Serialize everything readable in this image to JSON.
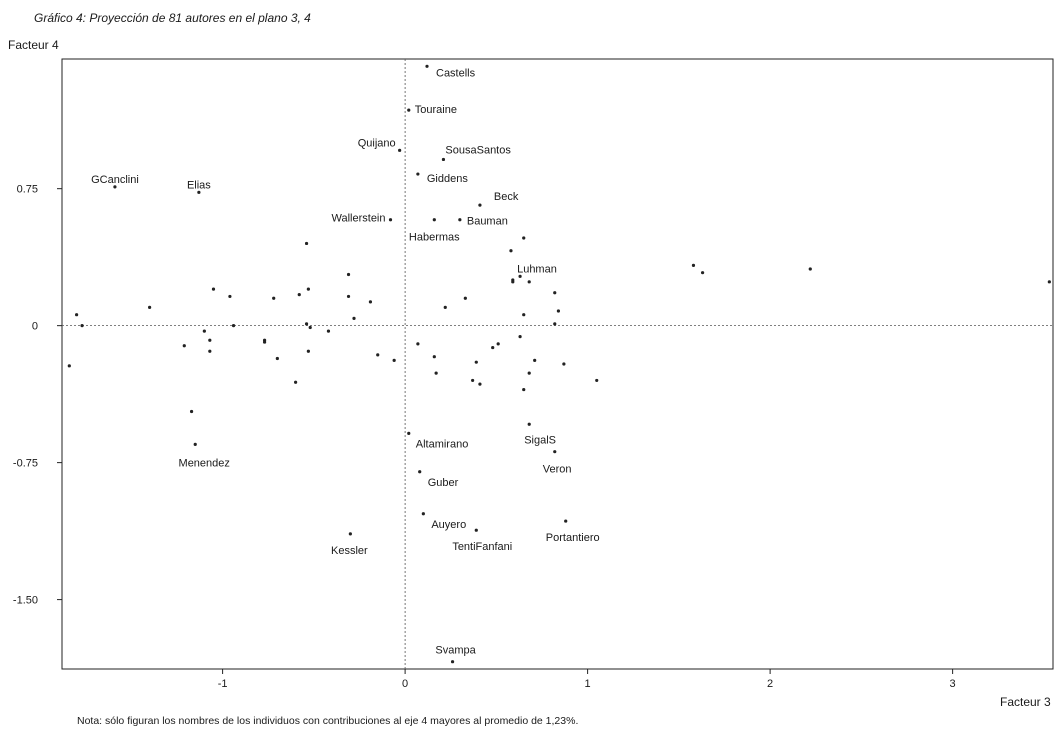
{
  "chart_data": {
    "type": "scatter",
    "title": "Gráfico 4: Proyección de 81 autores en el plano 3, 4",
    "xlabel": "Facteur 3",
    "ylabel": "Facteur 4",
    "note": "Nota: sólo figuran los nombres de los individuos con contribuciones al eje 4 mayores al promedio de 1,23%.",
    "xlim": [
      -1.88,
      3.55
    ],
    "ylim": [
      -1.88,
      1.46
    ],
    "x_ticks": [
      -1,
      0,
      1,
      2,
      3
    ],
    "x_tick_labels": [
      "-1",
      "0",
      "1",
      "2",
      "3"
    ],
    "y_ticks": [
      0.75,
      0,
      -0.75,
      -1.5
    ],
    "y_tick_labels": [
      "0.75",
      "0",
      "-0.75",
      "-1.50"
    ],
    "reference_lines": {
      "x": 0,
      "y": 0,
      "style": "dotted"
    },
    "grid": false,
    "points": [
      {
        "label": "Castells",
        "x": 0.12,
        "y": 1.42
      },
      {
        "label": "Touraine",
        "x": 0.02,
        "y": 1.18
      },
      {
        "label": "Quijano",
        "x": -0.03,
        "y": 0.96
      },
      {
        "label": "SousaSantos",
        "x": 0.21,
        "y": 0.91
      },
      {
        "label": "Giddens",
        "x": 0.07,
        "y": 0.83
      },
      {
        "label": "GCanclini",
        "x": -1.59,
        "y": 0.76
      },
      {
        "label": "Elias",
        "x": -1.13,
        "y": 0.73
      },
      {
        "label": "Beck",
        "x": 0.41,
        "y": 0.66
      },
      {
        "label": "Wallerstein",
        "x": -0.08,
        "y": 0.58
      },
      {
        "label": "Bauman",
        "x": 0.3,
        "y": 0.58
      },
      {
        "label": "Habermas",
        "x": 0.16,
        "y": 0.58
      },
      {
        "label": "Luhman",
        "x": 0.63,
        "y": 0.27
      },
      {
        "label": "Altamirano",
        "x": 0.02,
        "y": -0.59
      },
      {
        "label": "SigalS",
        "x": 0.68,
        "y": -0.54
      },
      {
        "label": "Veron",
        "x": 0.82,
        "y": -0.69
      },
      {
        "label": "Menendez",
        "x": -1.15,
        "y": -0.65
      },
      {
        "label": "Guber",
        "x": 0.08,
        "y": -0.8
      },
      {
        "label": "Auyero",
        "x": 0.1,
        "y": -1.03
      },
      {
        "label": "TentiFanfani",
        "x": 0.39,
        "y": -1.12
      },
      {
        "label": "Portantiero",
        "x": 0.88,
        "y": -1.07
      },
      {
        "label": "Kessler",
        "x": -0.3,
        "y": -1.14
      },
      {
        "label": "Svampa",
        "x": 0.26,
        "y": -1.84
      },
      {
        "label": "",
        "x": -1.84,
        "y": -0.22
      },
      {
        "label": "",
        "x": -1.8,
        "y": 0.06
      },
      {
        "label": "",
        "x": -1.77,
        "y": 0.0
      },
      {
        "label": "",
        "x": -1.4,
        "y": 0.1
      },
      {
        "label": "",
        "x": -1.21,
        "y": -0.11
      },
      {
        "label": "",
        "x": -1.17,
        "y": -0.47
      },
      {
        "label": "",
        "x": -1.1,
        "y": -0.03
      },
      {
        "label": "",
        "x": -1.07,
        "y": -0.08
      },
      {
        "label": "",
        "x": -1.07,
        "y": -0.14
      },
      {
        "label": "",
        "x": -1.05,
        "y": 0.2
      },
      {
        "label": "",
        "x": -0.96,
        "y": 0.16
      },
      {
        "label": "",
        "x": -0.94,
        "y": 0.0
      },
      {
        "label": "",
        "x": -0.77,
        "y": -0.08
      },
      {
        "label": "",
        "x": -0.77,
        "y": -0.09
      },
      {
        "label": "",
        "x": -0.72,
        "y": 0.15
      },
      {
        "label": "",
        "x": -0.7,
        "y": -0.18
      },
      {
        "label": "",
        "x": -0.6,
        "y": -0.31
      },
      {
        "label": "",
        "x": -0.58,
        "y": 0.17
      },
      {
        "label": "",
        "x": -0.54,
        "y": 0.45
      },
      {
        "label": "",
        "x": -0.54,
        "y": 0.01
      },
      {
        "label": "",
        "x": -0.53,
        "y": 0.2
      },
      {
        "label": "",
        "x": -0.53,
        "y": -0.14
      },
      {
        "label": "",
        "x": -0.52,
        "y": -0.01
      },
      {
        "label": "",
        "x": -0.42,
        "y": -0.03
      },
      {
        "label": "",
        "x": -0.31,
        "y": 0.28
      },
      {
        "label": "",
        "x": -0.31,
        "y": 0.16
      },
      {
        "label": "",
        "x": -0.28,
        "y": 0.04
      },
      {
        "label": "",
        "x": -0.19,
        "y": 0.13
      },
      {
        "label": "",
        "x": -0.15,
        "y": -0.16
      },
      {
        "label": "",
        "x": -0.06,
        "y": -0.19
      },
      {
        "label": "",
        "x": 0.07,
        "y": -0.1
      },
      {
        "label": "",
        "x": 0.16,
        "y": -0.17
      },
      {
        "label": "",
        "x": 0.17,
        "y": -0.26
      },
      {
        "label": "",
        "x": 0.22,
        "y": 0.1
      },
      {
        "label": "",
        "x": 0.33,
        "y": 0.15
      },
      {
        "label": "",
        "x": 0.37,
        "y": -0.3
      },
      {
        "label": "",
        "x": 0.39,
        "y": -0.2
      },
      {
        "label": "",
        "x": 0.41,
        "y": -0.32
      },
      {
        "label": "",
        "x": 0.48,
        "y": -0.12
      },
      {
        "label": "",
        "x": 0.51,
        "y": -0.1
      },
      {
        "label": "",
        "x": 0.58,
        "y": 0.41
      },
      {
        "label": "",
        "x": 0.59,
        "y": 0.25
      },
      {
        "label": "",
        "x": 0.59,
        "y": 0.24
      },
      {
        "label": "",
        "x": 0.63,
        "y": -0.06
      },
      {
        "label": "",
        "x": 0.65,
        "y": 0.48
      },
      {
        "label": "",
        "x": 0.65,
        "y": 0.06
      },
      {
        "label": "",
        "x": 0.65,
        "y": -0.35
      },
      {
        "label": "",
        "x": 0.68,
        "y": 0.24
      },
      {
        "label": "",
        "x": 0.68,
        "y": -0.26
      },
      {
        "label": "",
        "x": 0.71,
        "y": -0.19
      },
      {
        "label": "",
        "x": 0.82,
        "y": 0.18
      },
      {
        "label": "",
        "x": 0.82,
        "y": 0.01
      },
      {
        "label": "",
        "x": 0.84,
        "y": 0.08
      },
      {
        "label": "",
        "x": 0.87,
        "y": -0.21
      },
      {
        "label": "",
        "x": 1.05,
        "y": -0.3
      },
      {
        "label": "",
        "x": 1.58,
        "y": 0.33
      },
      {
        "label": "",
        "x": 1.63,
        "y": 0.29
      },
      {
        "label": "",
        "x": 2.22,
        "y": 0.31
      },
      {
        "label": "",
        "x": 3.53,
        "y": 0.24
      }
    ]
  }
}
